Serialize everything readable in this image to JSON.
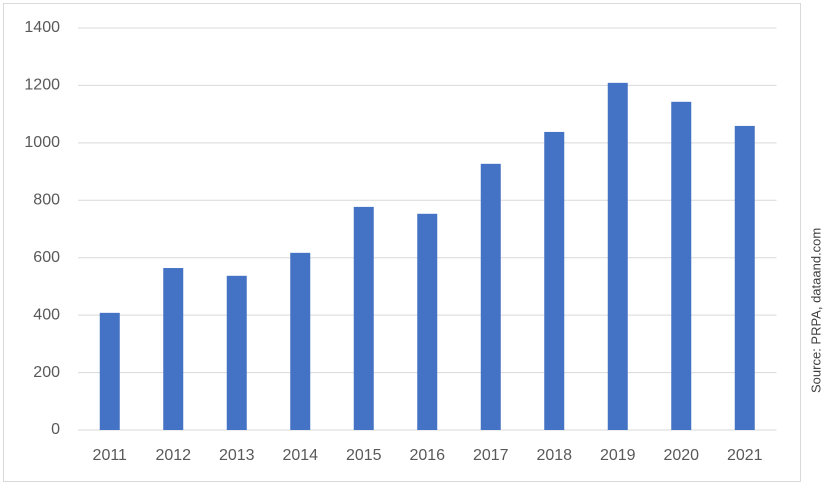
{
  "chart_data": {
    "type": "bar",
    "categories": [
      "2011",
      "2012",
      "2013",
      "2014",
      "2015",
      "2016",
      "2017",
      "2018",
      "2019",
      "2020",
      "2021"
    ],
    "values": [
      408,
      564,
      537,
      617,
      777,
      753,
      927,
      1038,
      1209,
      1143,
      1059
    ],
    "color": "#4472c4",
    "ylim": [
      0,
      1400
    ],
    "yticks": [
      0,
      200,
      400,
      600,
      800,
      1000,
      1200,
      1400
    ],
    "grid": true,
    "source": "Source: PRPA, dataand.com"
  }
}
